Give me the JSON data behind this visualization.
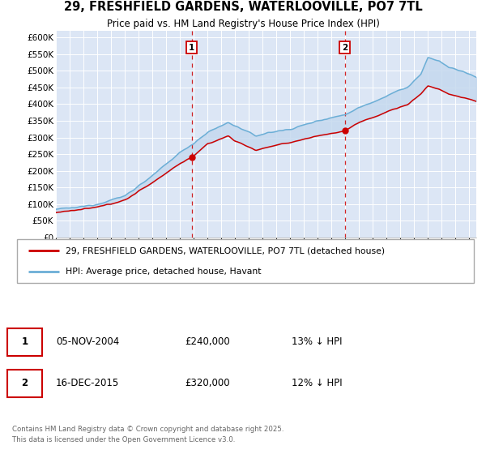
{
  "title": "29, FRESHFIELD GARDENS, WATERLOOVILLE, PO7 7TL",
  "subtitle": "Price paid vs. HM Land Registry's House Price Index (HPI)",
  "background_color": "#ffffff",
  "plot_bg_color": "#dce6f5",
  "fill_color": "#c5d9ee",
  "legend_label_red": "29, FRESHFIELD GARDENS, WATERLOOVILLE, PO7 7TL (detached house)",
  "legend_label_blue": "HPI: Average price, detached house, Havant",
  "marker1_date_str": "05-NOV-2004",
  "marker1_price": "£240,000",
  "marker1_note": "13% ↓ HPI",
  "marker1_year": 2004.84,
  "marker1_val": 240000,
  "marker2_date_str": "16-DEC-2015",
  "marker2_price": "£320,000",
  "marker2_note": "12% ↓ HPI",
  "marker2_year": 2015.96,
  "marker2_val": 320000,
  "footer": "Contains HM Land Registry data © Crown copyright and database right 2025.\nThis data is licensed under the Open Government Licence v3.0.",
  "hpi_color": "#6baed6",
  "price_color": "#cc0000",
  "fill_alpha": 0.5,
  "ylim": [
    0,
    620000
  ],
  "yticks": [
    0,
    50000,
    100000,
    150000,
    200000,
    250000,
    300000,
    350000,
    400000,
    450000,
    500000,
    550000,
    600000
  ],
  "ytick_labels": [
    "£0",
    "£50K",
    "£100K",
    "£150K",
    "£200K",
    "£250K",
    "£300K",
    "£350K",
    "£400K",
    "£450K",
    "£500K",
    "£550K",
    "£600K"
  ],
  "xlim_start": 1995.0,
  "xlim_end": 2025.5
}
